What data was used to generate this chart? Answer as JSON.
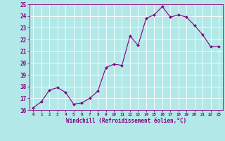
{
  "x": [
    0,
    1,
    2,
    3,
    4,
    5,
    6,
    7,
    8,
    9,
    10,
    11,
    12,
    13,
    14,
    15,
    16,
    17,
    18,
    19,
    20,
    21,
    22,
    23
  ],
  "y": [
    16.2,
    16.7,
    17.7,
    17.9,
    17.5,
    16.5,
    16.6,
    17.0,
    17.6,
    19.6,
    19.9,
    19.8,
    22.3,
    21.5,
    23.8,
    24.1,
    24.8,
    23.9,
    24.1,
    23.9,
    23.2,
    22.4,
    21.4,
    21.4
  ],
  "ylim": [
    16,
    25
  ],
  "xlim": [
    -0.5,
    23.5
  ],
  "yticks": [
    16,
    17,
    18,
    19,
    20,
    21,
    22,
    23,
    24,
    25
  ],
  "xticks": [
    0,
    1,
    2,
    3,
    4,
    5,
    6,
    7,
    8,
    9,
    10,
    11,
    12,
    13,
    14,
    15,
    16,
    17,
    18,
    19,
    20,
    21,
    22,
    23
  ],
  "xlabel": "Windchill (Refroidissement éolien,°C)",
  "line_color": "#800080",
  "marker_color": "#800080",
  "bg_color": "#b2e8e8",
  "grid_color": "#ffffff",
  "tick_color": "#800080",
  "label_color": "#800080"
}
